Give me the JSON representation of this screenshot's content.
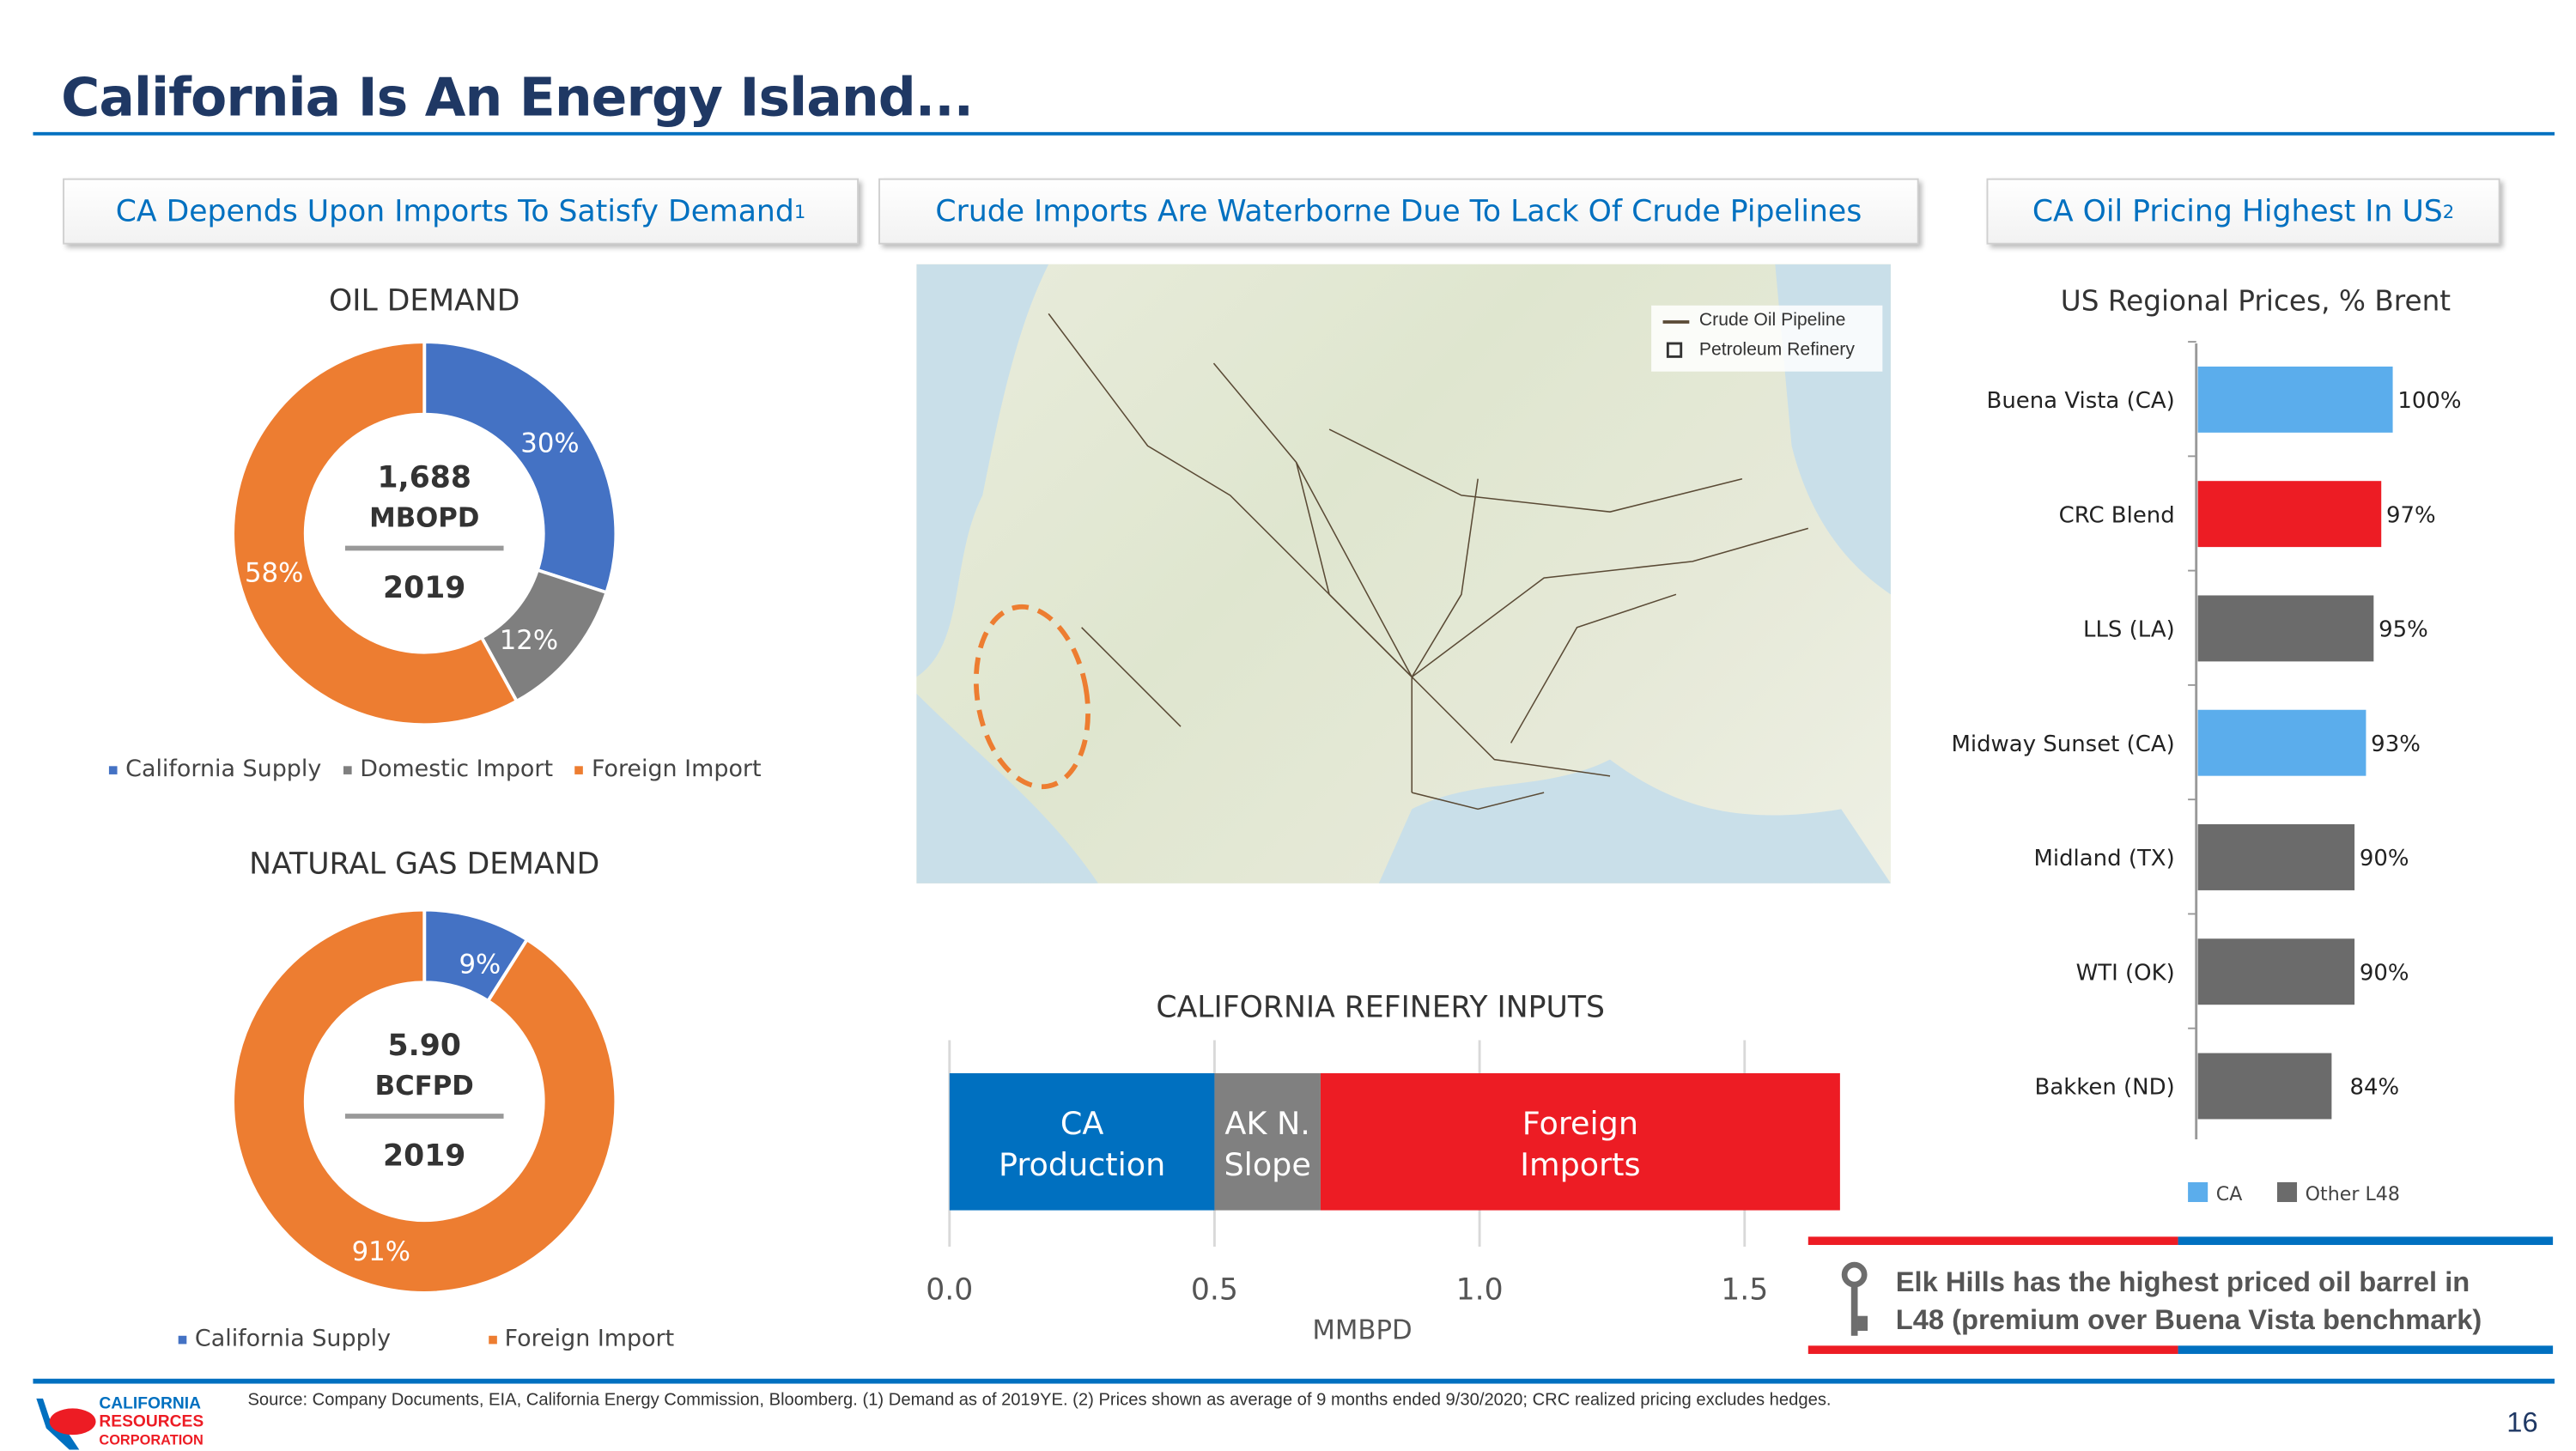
{
  "title": "California Is An Energy Island...",
  "headers": {
    "left": "CA Depends Upon Imports To Satisfy Demand",
    "left_sup": "1",
    "middle": "Crude Imports Are Waterborne Due To Lack Of Crude Pipelines",
    "right": "CA Oil Pricing Highest In US",
    "right_sup": "2"
  },
  "colors": {
    "blue": "#4472c4",
    "gray": "#7f7f7f",
    "orange": "#ed7d31",
    "ca_blue": "#5badec",
    "red": "#ed1c24",
    "dark_gray": "#6b6b6b",
    "brand_blue": "#0070c0"
  },
  "chart_data": [
    {
      "type": "pie",
      "title": "OIL DEMAND",
      "center": {
        "line1": "1,688",
        "line2": "MBOPD",
        "line3": "2019"
      },
      "categories": [
        "California Supply",
        "Domestic Import",
        "Foreign Import"
      ],
      "values": [
        30,
        12,
        58
      ],
      "labels": [
        "30%",
        "12%",
        "58%"
      ]
    },
    {
      "type": "pie",
      "title": "NATURAL GAS DEMAND",
      "center": {
        "line1": "5.90",
        "line2": "BCFPD",
        "line3": "2019"
      },
      "categories": [
        "California Supply",
        "Foreign Import"
      ],
      "values": [
        9,
        91
      ],
      "labels": [
        "9%",
        "91%"
      ]
    },
    {
      "type": "bar",
      "title": "CALIFORNIA REFINERY INPUTS",
      "xlabel": "MMBPD",
      "xlim": [
        0,
        1.5
      ],
      "ticks": [
        "0.0",
        "0.5",
        "1.0",
        "1.5"
      ],
      "tick_values": [
        0,
        0.5,
        1.0,
        1.5
      ],
      "series": [
        {
          "name": "CA Production",
          "line1": "CA",
          "line2": "Production",
          "value": 0.5
        },
        {
          "name": "AK N. Slope",
          "line1": "AK N.",
          "line2": "Slope",
          "value": 0.2
        },
        {
          "name": "Foreign Imports",
          "line1": "Foreign",
          "line2": "Imports",
          "value": 0.98
        }
      ]
    },
    {
      "type": "bar",
      "title": "US Regional Prices, % Brent",
      "xlim": [
        49,
        100
      ],
      "categories": [
        "Buena Vista (CA)",
        "CRC Blend",
        "LLS (LA)",
        "Midway Sunset (CA)",
        "Midland (TX)",
        "WTI (OK)",
        "Bakken (ND)"
      ],
      "values": [
        100,
        97,
        95,
        93,
        90,
        90,
        84
      ],
      "labels": [
        "100%",
        "97%",
        "95%",
        "93%",
        "90%",
        "90%",
        "84%"
      ],
      "groups": [
        "CA",
        "CRC",
        "Other L48",
        "CA",
        "Other L48",
        "Other L48",
        "Other L48"
      ],
      "legend": [
        "CA",
        "Other L48"
      ]
    }
  ],
  "map": {
    "legend": [
      "Crude Oil Pipeline",
      "Petroleum Refinery"
    ]
  },
  "callout": {
    "line1": "Elk Hills has the highest priced oil barrel in",
    "line2": "L48 (premium over Buena Vista benchmark)"
  },
  "footer": {
    "source": "Source:  Company Documents, EIA, California Energy Commission, Bloomberg. (1) Demand as of 2019YE. (2) Prices shown as average of 9 months ended 9/30/2020; CRC realized pricing excludes hedges.",
    "page": "16",
    "logo": [
      "CALIFORNIA",
      "RESOURCES",
      "CORPORATION"
    ]
  }
}
